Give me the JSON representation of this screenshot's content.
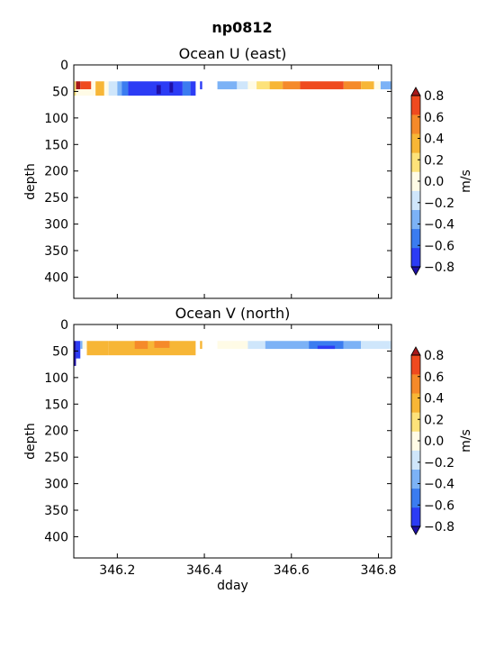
{
  "suptitle": "np0812",
  "colors": {
    "levels": [
      "#2c3cf5",
      "#3b7cf0",
      "#7cb2f6",
      "#cfe6fb",
      "#fffbe6",
      "#fde27a",
      "#f7b636",
      "#f58a2a",
      "#ef4a1f"
    ],
    "under": "#1f10a8",
    "over": "#a8191a"
  },
  "chart_data": [
    {
      "type": "heatmap",
      "title": "Ocean U (east)",
      "xlabel": "",
      "ylabel": "depth",
      "xlim": [
        346.1,
        346.83
      ],
      "ylim": [
        440,
        0
      ],
      "xticks": [
        346.2,
        346.4,
        346.6,
        346.8
      ],
      "xticklabels": [
        "",
        "",
        "",
        ""
      ],
      "yticks": [
        0,
        50,
        100,
        150,
        200,
        250,
        300,
        350,
        400
      ],
      "yticklabels": [
        "0",
        "50",
        "100",
        "150",
        "200",
        "250",
        "300",
        "350",
        "400"
      ],
      "colorbar": {
        "label": "m/s",
        "ticks": [
          "0.8",
          "0.6",
          "0.4",
          "0.2",
          "0.0",
          "−0.2",
          "−0.4",
          "−0.6",
          "−0.8"
        ],
        "levels": [
          -0.8,
          -0.6,
          -0.4,
          -0.2,
          -0.1,
          0.1,
          0.2,
          0.4,
          0.6,
          0.8
        ],
        "extend": "both"
      },
      "cells": [
        {
          "x0": 346.1,
          "x1": 346.105,
          "y0": 31,
          "y1": 58,
          "v": 0.1
        },
        {
          "x0": 346.105,
          "x1": 346.115,
          "y0": 31,
          "y1": 46,
          "v": 0.9
        },
        {
          "x0": 346.115,
          "x1": 346.14,
          "y0": 31,
          "y1": 46,
          "v": 0.75
        },
        {
          "x0": 346.105,
          "x1": 346.14,
          "y0": 46,
          "y1": 58,
          "v": 0.0
        },
        {
          "x0": 346.14,
          "x1": 346.15,
          "y0": 31,
          "y1": 58,
          "v": 0.0
        },
        {
          "x0": 346.15,
          "x1": 346.17,
          "y0": 31,
          "y1": 58,
          "v": 0.3
        },
        {
          "x0": 346.17,
          "x1": 346.18,
          "y0": 31,
          "y1": 58,
          "v": 0.0
        },
        {
          "x0": 346.18,
          "x1": 346.2,
          "y0": 31,
          "y1": 58,
          "v": -0.15
        },
        {
          "x0": 346.2,
          "x1": 346.21,
          "y0": 31,
          "y1": 58,
          "v": -0.3
        },
        {
          "x0": 346.21,
          "x1": 346.225,
          "y0": 31,
          "y1": 58,
          "v": -0.5
        },
        {
          "x0": 346.225,
          "x1": 346.35,
          "y0": 31,
          "y1": 58,
          "v": -0.7
        },
        {
          "x0": 346.29,
          "x1": 346.3,
          "y0": 38,
          "y1": 55,
          "v": -0.9
        },
        {
          "x0": 346.32,
          "x1": 346.328,
          "y0": 33,
          "y1": 52,
          "v": -0.9
        },
        {
          "x0": 346.35,
          "x1": 346.368,
          "y0": 31,
          "y1": 58,
          "v": -0.55
        },
        {
          "x0": 346.368,
          "x1": 346.38,
          "y0": 31,
          "y1": 58,
          "v": -0.7
        },
        {
          "x0": 346.39,
          "x1": 346.395,
          "y0": 31,
          "y1": 46,
          "v": -0.7
        },
        {
          "x0": 346.43,
          "x1": 346.475,
          "y0": 31,
          "y1": 46,
          "v": -0.3
        },
        {
          "x0": 346.475,
          "x1": 346.5,
          "y0": 31,
          "y1": 46,
          "v": -0.15
        },
        {
          "x0": 346.5,
          "x1": 346.52,
          "y0": 31,
          "y1": 46,
          "v": 0.0
        },
        {
          "x0": 346.52,
          "x1": 346.55,
          "y0": 31,
          "y1": 46,
          "v": 0.15
        },
        {
          "x0": 346.55,
          "x1": 346.58,
          "y0": 31,
          "y1": 46,
          "v": 0.3
        },
        {
          "x0": 346.58,
          "x1": 346.62,
          "y0": 31,
          "y1": 46,
          "v": 0.5
        },
        {
          "x0": 346.62,
          "x1": 346.72,
          "y0": 31,
          "y1": 46,
          "v": 0.7
        },
        {
          "x0": 346.72,
          "x1": 346.76,
          "y0": 31,
          "y1": 46,
          "v": 0.5
        },
        {
          "x0": 346.76,
          "x1": 346.79,
          "y0": 31,
          "y1": 46,
          "v": 0.3
        },
        {
          "x0": 346.79,
          "x1": 346.805,
          "y0": 31,
          "y1": 46,
          "v": 0.0
        },
        {
          "x0": 346.805,
          "x1": 346.83,
          "y0": 31,
          "y1": 46,
          "v": -0.3
        }
      ]
    },
    {
      "type": "heatmap",
      "title": "Ocean V (north)",
      "xlabel": "dday",
      "ylabel": "depth",
      "xlim": [
        346.1,
        346.83
      ],
      "ylim": [
        440,
        0
      ],
      "xticks": [
        346.2,
        346.4,
        346.6,
        346.8
      ],
      "xticklabels": [
        "346.2",
        "346.4",
        "346.6",
        "346.8"
      ],
      "yticks": [
        0,
        50,
        100,
        150,
        200,
        250,
        300,
        350,
        400
      ],
      "yticklabels": [
        "0",
        "50",
        "100",
        "150",
        "200",
        "250",
        "300",
        "350",
        "400"
      ],
      "colorbar": {
        "label": "m/s",
        "ticks": [
          "0.8",
          "0.6",
          "0.4",
          "0.2",
          "0.0",
          "−0.2",
          "−0.4",
          "−0.6",
          "−0.8"
        ],
        "levels": [
          -0.8,
          -0.6,
          -0.4,
          -0.2,
          -0.1,
          0.1,
          0.2,
          0.4,
          0.6,
          0.8
        ],
        "extend": "both"
      },
      "cells": [
        {
          "x0": 346.1,
          "x1": 346.105,
          "y0": 31,
          "y1": 78,
          "v": -0.9
        },
        {
          "x0": 346.105,
          "x1": 346.115,
          "y0": 31,
          "y1": 64,
          "v": -0.7
        },
        {
          "x0": 346.115,
          "x1": 346.12,
          "y0": 31,
          "y1": 46,
          "v": -0.3
        },
        {
          "x0": 346.12,
          "x1": 346.13,
          "y0": 31,
          "y1": 46,
          "v": 0.0
        },
        {
          "x0": 346.13,
          "x1": 346.18,
          "y0": 31,
          "y1": 58,
          "v": 0.3
        },
        {
          "x0": 346.18,
          "x1": 346.38,
          "y0": 31,
          "y1": 58,
          "v": 0.3
        },
        {
          "x0": 346.24,
          "x1": 346.27,
          "y0": 31,
          "y1": 46,
          "v": 0.5
        },
        {
          "x0": 346.285,
          "x1": 346.32,
          "y0": 31,
          "y1": 44,
          "v": 0.5
        },
        {
          "x0": 346.39,
          "x1": 346.395,
          "y0": 31,
          "y1": 46,
          "v": 0.3
        },
        {
          "x0": 346.43,
          "x1": 346.46,
          "y0": 31,
          "y1": 46,
          "v": 0.0
        },
        {
          "x0": 346.46,
          "x1": 346.5,
          "y0": 31,
          "y1": 46,
          "v": -0.1
        },
        {
          "x0": 346.5,
          "x1": 346.54,
          "y0": 31,
          "y1": 46,
          "v": -0.15
        },
        {
          "x0": 346.54,
          "x1": 346.64,
          "y0": 31,
          "y1": 46,
          "v": -0.3
        },
        {
          "x0": 346.64,
          "x1": 346.72,
          "y0": 31,
          "y1": 46,
          "v": -0.5
        },
        {
          "x0": 346.66,
          "x1": 346.7,
          "y0": 40,
          "y1": 46,
          "v": -0.7
        },
        {
          "x0": 346.72,
          "x1": 346.76,
          "y0": 31,
          "y1": 46,
          "v": -0.3
        },
        {
          "x0": 346.76,
          "x1": 346.83,
          "y0": 31,
          "y1": 46,
          "v": -0.15
        }
      ]
    }
  ]
}
